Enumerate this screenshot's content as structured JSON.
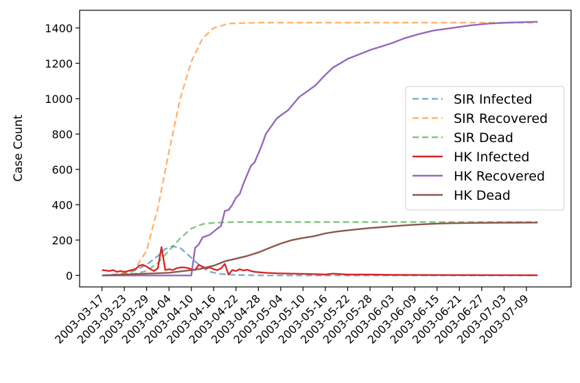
{
  "chart_data": {
    "type": "line",
    "title": "",
    "xlabel": "",
    "ylabel": "Case Count",
    "ylim": [
      -65,
      1500
    ],
    "xlim": [
      "2003-03-11",
      "2003-07-21"
    ],
    "x_ticks": [
      "2003-03-17",
      "2003-03-23",
      "2003-03-29",
      "2003-04-04",
      "2003-04-10",
      "2003-04-16",
      "2003-04-22",
      "2003-04-28",
      "2003-05-04",
      "2003-05-10",
      "2003-05-16",
      "2003-05-22",
      "2003-05-28",
      "2003-06-03",
      "2003-06-09",
      "2003-06-15",
      "2003-06-21",
      "2003-06-27",
      "2003-07-03",
      "2003-07-09"
    ],
    "y_ticks": [
      0,
      200,
      400,
      600,
      800,
      1000,
      1200,
      1400
    ],
    "grid": false,
    "legend_position": "center-right",
    "series": [
      {
        "name": "SIR Infected",
        "color": "#1f77b4",
        "style": "dashed",
        "alpha": 0.6,
        "points": [
          [
            "2003-03-17",
            0
          ],
          [
            "2003-03-21",
            5
          ],
          [
            "2003-03-25",
            20
          ],
          [
            "2003-03-29",
            60
          ],
          [
            "2003-04-01",
            110
          ],
          [
            "2003-04-03",
            150
          ],
          [
            "2003-04-05",
            165
          ],
          [
            "2003-04-07",
            155
          ],
          [
            "2003-04-09",
            120
          ],
          [
            "2003-04-11",
            80
          ],
          [
            "2003-04-13",
            45
          ],
          [
            "2003-04-15",
            20
          ],
          [
            "2003-04-18",
            8
          ],
          [
            "2003-04-22",
            2
          ],
          [
            "2003-05-01",
            0
          ],
          [
            "2003-07-12",
            0
          ]
        ]
      },
      {
        "name": "SIR Recovered",
        "color": "#ff7f0e",
        "style": "dashed",
        "alpha": 0.6,
        "points": [
          [
            "2003-03-17",
            0
          ],
          [
            "2003-03-23",
            10
          ],
          [
            "2003-03-26",
            40
          ],
          [
            "2003-03-29",
            140
          ],
          [
            "2003-04-01",
            380
          ],
          [
            "2003-04-04",
            700
          ],
          [
            "2003-04-07",
            1000
          ],
          [
            "2003-04-10",
            1210
          ],
          [
            "2003-04-13",
            1340
          ],
          [
            "2003-04-16",
            1400
          ],
          [
            "2003-04-20",
            1425
          ],
          [
            "2003-04-28",
            1430
          ],
          [
            "2003-07-12",
            1430
          ]
        ]
      },
      {
        "name": "SIR Dead",
        "color": "#2ca02c",
        "style": "dashed",
        "alpha": 0.6,
        "points": [
          [
            "2003-03-17",
            0
          ],
          [
            "2003-03-26",
            10
          ],
          [
            "2003-03-29",
            25
          ],
          [
            "2003-04-01",
            70
          ],
          [
            "2003-04-04",
            140
          ],
          [
            "2003-04-07",
            210
          ],
          [
            "2003-04-10",
            265
          ],
          [
            "2003-04-13",
            290
          ],
          [
            "2003-04-16",
            298
          ],
          [
            "2003-04-22",
            302
          ],
          [
            "2003-07-12",
            302
          ]
        ]
      },
      {
        "name": "HK Infected",
        "color": "#d62728",
        "style": "solid",
        "alpha": 1,
        "points": [
          [
            "2003-03-17",
            30
          ],
          [
            "2003-03-18",
            28
          ],
          [
            "2003-03-19",
            25
          ],
          [
            "2003-03-20",
            30
          ],
          [
            "2003-03-21",
            20
          ],
          [
            "2003-03-22",
            25
          ],
          [
            "2003-03-23",
            20
          ],
          [
            "2003-03-24",
            25
          ],
          [
            "2003-03-25",
            30
          ],
          [
            "2003-03-26",
            35
          ],
          [
            "2003-03-27",
            55
          ],
          [
            "2003-03-28",
            60
          ],
          [
            "2003-03-29",
            50
          ],
          [
            "2003-03-30",
            35
          ],
          [
            "2003-03-31",
            25
          ],
          [
            "2003-04-01",
            40
          ],
          [
            "2003-04-02",
            160
          ],
          [
            "2003-04-03",
            30
          ],
          [
            "2003-04-04",
            35
          ],
          [
            "2003-04-05",
            30
          ],
          [
            "2003-04-06",
            40
          ],
          [
            "2003-04-07",
            45
          ],
          [
            "2003-04-08",
            45
          ],
          [
            "2003-04-09",
            42
          ],
          [
            "2003-04-10",
            35
          ],
          [
            "2003-04-11",
            30
          ],
          [
            "2003-04-12",
            60
          ],
          [
            "2003-04-13",
            50
          ],
          [
            "2003-04-14",
            40
          ],
          [
            "2003-04-15",
            45
          ],
          [
            "2003-04-16",
            35
          ],
          [
            "2003-04-17",
            30
          ],
          [
            "2003-04-18",
            40
          ],
          [
            "2003-04-19",
            65
          ],
          [
            "2003-04-20",
            5
          ],
          [
            "2003-04-21",
            30
          ],
          [
            "2003-04-22",
            25
          ],
          [
            "2003-04-23",
            35
          ],
          [
            "2003-04-24",
            28
          ],
          [
            "2003-04-25",
            32
          ],
          [
            "2003-04-26",
            25
          ],
          [
            "2003-04-27",
            20
          ],
          [
            "2003-04-28",
            18
          ],
          [
            "2003-04-30",
            15
          ],
          [
            "2003-05-03",
            12
          ],
          [
            "2003-05-07",
            10
          ],
          [
            "2003-05-12",
            8
          ],
          [
            "2003-05-16",
            5
          ],
          [
            "2003-05-18",
            10
          ],
          [
            "2003-05-22",
            5
          ],
          [
            "2003-05-28",
            5
          ],
          [
            "2003-06-03",
            3
          ],
          [
            "2003-06-15",
            2
          ],
          [
            "2003-07-12",
            1
          ]
        ]
      },
      {
        "name": "HK Recovered",
        "color": "#9467bd",
        "style": "solid",
        "alpha": 1,
        "points": [
          [
            "2003-03-17",
            0
          ],
          [
            "2003-04-10",
            0
          ],
          [
            "2003-04-11",
            155
          ],
          [
            "2003-04-12",
            175
          ],
          [
            "2003-04-13",
            215
          ],
          [
            "2003-04-15",
            230
          ],
          [
            "2003-04-17",
            265
          ],
          [
            "2003-04-18",
            280
          ],
          [
            "2003-04-19",
            365
          ],
          [
            "2003-04-20",
            370
          ],
          [
            "2003-04-21",
            400
          ],
          [
            "2003-04-22",
            440
          ],
          [
            "2003-04-23",
            460
          ],
          [
            "2003-04-24",
            520
          ],
          [
            "2003-04-25",
            570
          ],
          [
            "2003-04-26",
            620
          ],
          [
            "2003-04-27",
            640
          ],
          [
            "2003-04-28",
            690
          ],
          [
            "2003-04-29",
            740
          ],
          [
            "2003-04-30",
            800
          ],
          [
            "2003-05-02",
            860
          ],
          [
            "2003-05-03",
            890
          ],
          [
            "2003-05-05",
            920
          ],
          [
            "2003-05-06",
            935
          ],
          [
            "2003-05-08",
            985
          ],
          [
            "2003-05-09",
            1010
          ],
          [
            "2003-05-11",
            1040
          ],
          [
            "2003-05-13",
            1070
          ],
          [
            "2003-05-14",
            1090
          ],
          [
            "2003-05-16",
            1135
          ],
          [
            "2003-05-18",
            1175
          ],
          [
            "2003-05-20",
            1200
          ],
          [
            "2003-05-22",
            1225
          ],
          [
            "2003-05-25",
            1250
          ],
          [
            "2003-05-28",
            1275
          ],
          [
            "2003-05-31",
            1295
          ],
          [
            "2003-06-03",
            1315
          ],
          [
            "2003-06-06",
            1340
          ],
          [
            "2003-06-10",
            1365
          ],
          [
            "2003-06-14",
            1385
          ],
          [
            "2003-06-19",
            1400
          ],
          [
            "2003-06-24",
            1415
          ],
          [
            "2003-06-29",
            1425
          ],
          [
            "2003-07-04",
            1430
          ],
          [
            "2003-07-12",
            1435
          ]
        ]
      },
      {
        "name": "HK Dead",
        "color": "#8c564b",
        "style": "solid",
        "alpha": 1,
        "points": [
          [
            "2003-03-17",
            0
          ],
          [
            "2003-03-23",
            5
          ],
          [
            "2003-03-29",
            10
          ],
          [
            "2003-04-04",
            15
          ],
          [
            "2003-04-08",
            25
          ],
          [
            "2003-04-12",
            35
          ],
          [
            "2003-04-16",
            55
          ],
          [
            "2003-04-19",
            80
          ],
          [
            "2003-04-22",
            95
          ],
          [
            "2003-04-25",
            110
          ],
          [
            "2003-04-28",
            130
          ],
          [
            "2003-05-01",
            155
          ],
          [
            "2003-05-04",
            180
          ],
          [
            "2003-05-07",
            200
          ],
          [
            "2003-05-10",
            212
          ],
          [
            "2003-05-13",
            222
          ],
          [
            "2003-05-16",
            238
          ],
          [
            "2003-05-19",
            248
          ],
          [
            "2003-05-22",
            255
          ],
          [
            "2003-05-25",
            262
          ],
          [
            "2003-05-28",
            268
          ],
          [
            "2003-05-31",
            273
          ],
          [
            "2003-06-03",
            278
          ],
          [
            "2003-06-06",
            283
          ],
          [
            "2003-06-09",
            287
          ],
          [
            "2003-06-12",
            290
          ],
          [
            "2003-06-15",
            293
          ],
          [
            "2003-06-18",
            295
          ],
          [
            "2003-06-24",
            297
          ],
          [
            "2003-07-01",
            298
          ],
          [
            "2003-07-12",
            299
          ]
        ]
      }
    ]
  }
}
